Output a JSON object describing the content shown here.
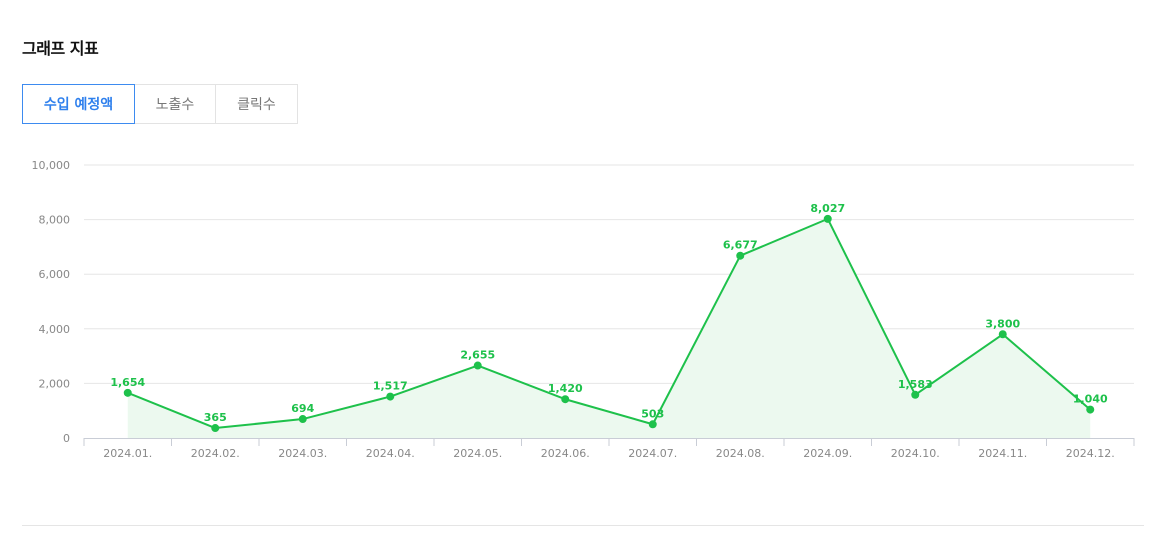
{
  "title": "그래프 지표",
  "tabs": [
    {
      "label": "수입 예정액",
      "active": true
    },
    {
      "label": "노출수",
      "active": false
    },
    {
      "label": "클릭수",
      "active": false
    }
  ],
  "colors": {
    "series": "#1ec14b",
    "area": "#ecf9ef",
    "active_tab": "#2f80ed"
  },
  "chart_data": {
    "type": "area",
    "categories": [
      "2024.01.",
      "2024.02.",
      "2024.03.",
      "2024.04.",
      "2024.05.",
      "2024.06.",
      "2024.07.",
      "2024.08.",
      "2024.09.",
      "2024.10.",
      "2024.11.",
      "2024.12."
    ],
    "values": [
      1654,
      365,
      694,
      1517,
      2655,
      1420,
      503,
      6677,
      8027,
      1583,
      3800,
      1040
    ],
    "value_labels": [
      "1,654",
      "365",
      "694",
      "1,517",
      "2,655",
      "1,420",
      "503",
      "6,677",
      "8,027",
      "1,583",
      "3,800",
      "1,040"
    ],
    "ylim": [
      0,
      10000
    ],
    "yticks": [
      0,
      2000,
      4000,
      6000,
      8000,
      10000
    ],
    "ytick_labels": [
      "0",
      "2,000",
      "4,000",
      "6,000",
      "8,000",
      "10,000"
    ],
    "grid": true,
    "legend": "none"
  }
}
